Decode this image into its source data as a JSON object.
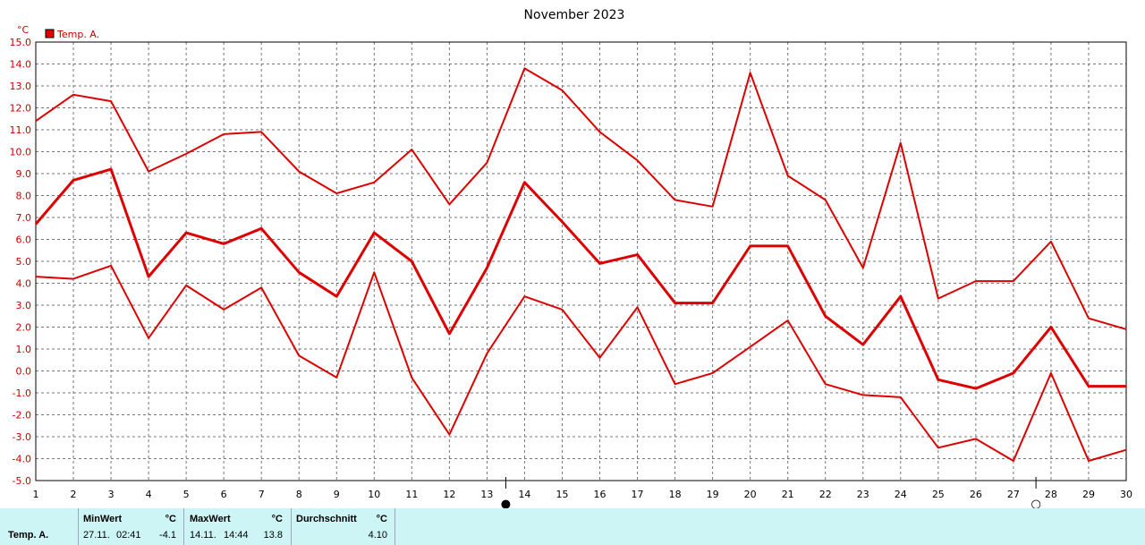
{
  "chart_data": {
    "type": "line",
    "title": "November 2023",
    "yunit": "°C",
    "legend": "Temp. A.",
    "legend_color": "#dd0000",
    "line_color": "#dd0000",
    "ylim": [
      -5,
      15
    ],
    "yticks": [
      "15.0",
      "14.0",
      "13.0",
      "12.0",
      "11.0",
      "10.0",
      "9.0",
      "8.0",
      "7.0",
      "6.0",
      "5.0",
      "4.0",
      "3.0",
      "2.0",
      "1.0",
      "0.0",
      "-1.0",
      "-2.0",
      "-3.0",
      "-4.0",
      "-5.0"
    ],
    "x": [
      1,
      2,
      3,
      4,
      5,
      6,
      7,
      8,
      9,
      10,
      11,
      12,
      13,
      14,
      15,
      16,
      17,
      18,
      19,
      20,
      21,
      22,
      23,
      24,
      25,
      26,
      27,
      28,
      29,
      30
    ],
    "series": [
      {
        "role": "max",
        "values": [
          11.4,
          12.6,
          12.3,
          9.1,
          9.9,
          10.8,
          10.9,
          9.1,
          8.1,
          8.6,
          10.1,
          7.6,
          9.5,
          13.8,
          12.8,
          10.9,
          9.6,
          7.8,
          7.5,
          13.6,
          8.9,
          7.8,
          4.7,
          10.4,
          3.3,
          4.1,
          4.1,
          5.9,
          2.4,
          1.9
        ]
      },
      {
        "role": "avg",
        "values": [
          6.7,
          8.7,
          9.2,
          4.3,
          6.3,
          5.8,
          6.5,
          4.5,
          3.4,
          6.3,
          5.0,
          1.7,
          4.7,
          8.6,
          6.8,
          4.9,
          5.3,
          3.1,
          3.1,
          5.7,
          5.7,
          2.5,
          1.2,
          3.4,
          -0.4,
          -0.8,
          -0.1,
          2.0,
          -0.7,
          -0.7
        ]
      },
      {
        "role": "min",
        "values": [
          4.3,
          4.2,
          4.8,
          1.5,
          3.9,
          2.8,
          3.8,
          0.7,
          -0.3,
          4.5,
          -0.3,
          -2.9,
          0.8,
          3.4,
          2.8,
          0.6,
          2.9,
          -0.6,
          -0.1,
          1.1,
          2.3,
          -0.6,
          -1.1,
          -1.2,
          -3.5,
          -3.1,
          -4.1,
          -0.1,
          -4.1,
          -3.6
        ]
      }
    ],
    "moon_markers": [
      {
        "day": 13.5,
        "phase": "full-moon",
        "symbol": "●"
      },
      {
        "day": 27.6,
        "phase": "new-moon",
        "symbol": "○"
      }
    ],
    "grid": true
  },
  "stats": {
    "row_label": "Temp. A.",
    "min": {
      "header": "MinWert",
      "unit": "°C",
      "date": "27.11.",
      "time": "02:41",
      "value": "-4.1"
    },
    "max": {
      "header": "MaxWert",
      "unit": "°C",
      "date": "14.11.",
      "time": "14:44",
      "value": "13.8"
    },
    "avg": {
      "header": "Durchschnitt",
      "unit": "°C",
      "value": "4.10"
    }
  }
}
